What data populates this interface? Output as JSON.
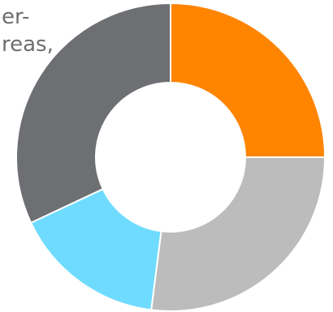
{
  "caption_fragment": {
    "line_1": "er-",
    "line_2": "reas,"
  },
  "chart_data": {
    "type": "pie",
    "variant": "donut",
    "title": "",
    "legend": "none",
    "data_labels": "none",
    "slices": [
      {
        "label": "",
        "value": 25,
        "color": "#ff8400"
      },
      {
        "label": "",
        "value": 27,
        "color": "#bcbcbc"
      },
      {
        "label": "",
        "value": 16,
        "color": "#6fdcff"
      },
      {
        "label": "",
        "value": 32,
        "color": "#6e6f73"
      }
    ]
  }
}
